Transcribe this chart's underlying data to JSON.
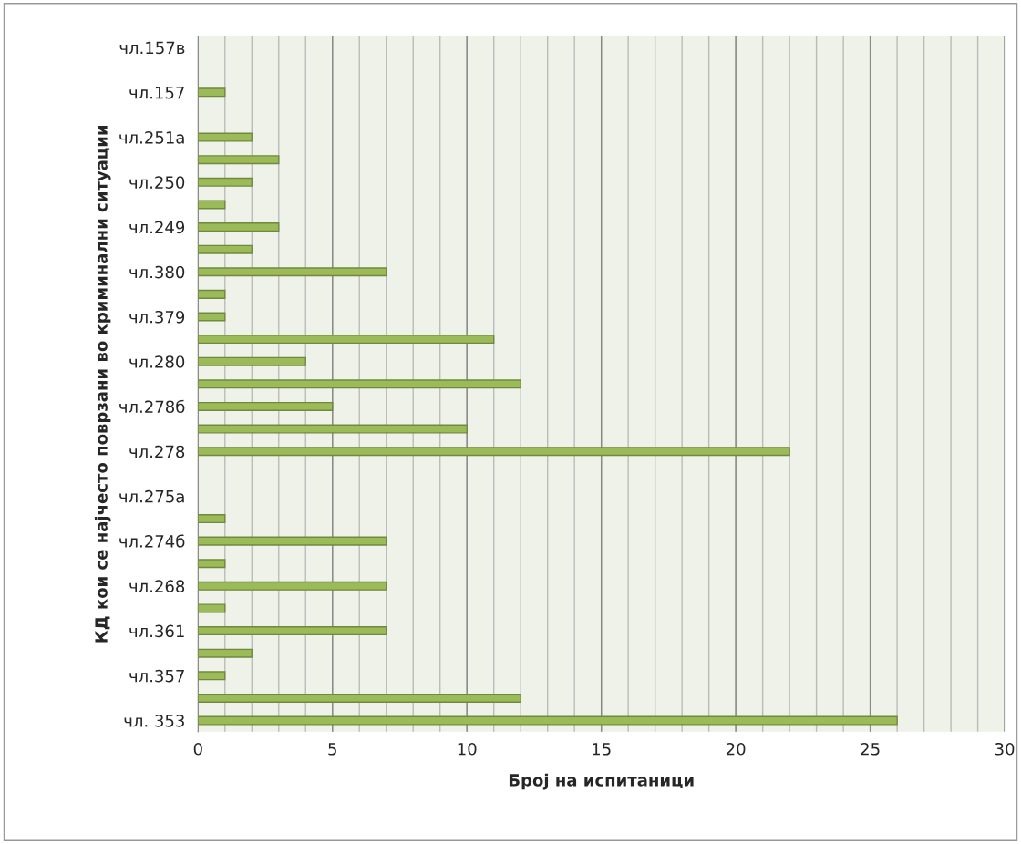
{
  "chart_data": {
    "type": "bar",
    "orientation": "horizontal",
    "xlabel": "Број на испитаници",
    "ylabel": "КД кои се најчесто поврзани во криминални ситуации",
    "categories": [
      "чл.157в",
      null,
      "чл.157",
      null,
      "чл.251а",
      null,
      "чл.250",
      null,
      "чл.249",
      null,
      "чл.380",
      null,
      "чл.379",
      null,
      "чл.280",
      null,
      "чл.278б",
      null,
      "чл.278",
      null,
      "чл.275а",
      null,
      "чл.274б",
      null,
      "чл.268",
      null,
      "чл.361",
      null,
      "чл.357",
      null,
      "чл. 353"
    ],
    "values": [
      0,
      0,
      1,
      0,
      2,
      3,
      2,
      1,
      3,
      2,
      7,
      1,
      1,
      11,
      4,
      12,
      5,
      10,
      22,
      0,
      0,
      1,
      7,
      1,
      7,
      1,
      7,
      2,
      1,
      12,
      26
    ],
    "color": "#9bbb59",
    "xlim": [
      0,
      30
    ],
    "xticks": [
      0,
      {
        "value": 1,
        "label": null
      },
      {
        "value": 2,
        "label": null
      },
      {
        "value": 3,
        "label": null
      },
      {
        "value": 4,
        "label": null
      },
      5,
      {
        "value": 6,
        "label": null
      },
      {
        "value": 7,
        "label": null
      },
      {
        "value": 8,
        "label": null
      },
      {
        "value": 9,
        "label": null
      },
      10,
      {
        "value": 11,
        "label": null
      },
      {
        "value": 12,
        "label": null
      },
      {
        "value": 13,
        "label": null
      },
      {
        "value": 14,
        "label": null
      },
      15,
      {
        "value": 16,
        "label": null
      },
      {
        "value": 17,
        "label": null
      },
      {
        "value": 18,
        "label": null
      },
      {
        "value": 19,
        "label": null
      },
      20,
      {
        "value": 21,
        "label": null
      },
      {
        "value": 22,
        "label": null
      },
      {
        "value": 23,
        "label": null
      },
      {
        "value": 24,
        "label": null
      },
      25,
      {
        "value": 26,
        "label": null
      },
      {
        "value": 27,
        "label": null
      },
      {
        "value": 28,
        "label": null
      },
      {
        "value": 29,
        "label": null
      },
      30
    ],
    "grid": "x"
  }
}
